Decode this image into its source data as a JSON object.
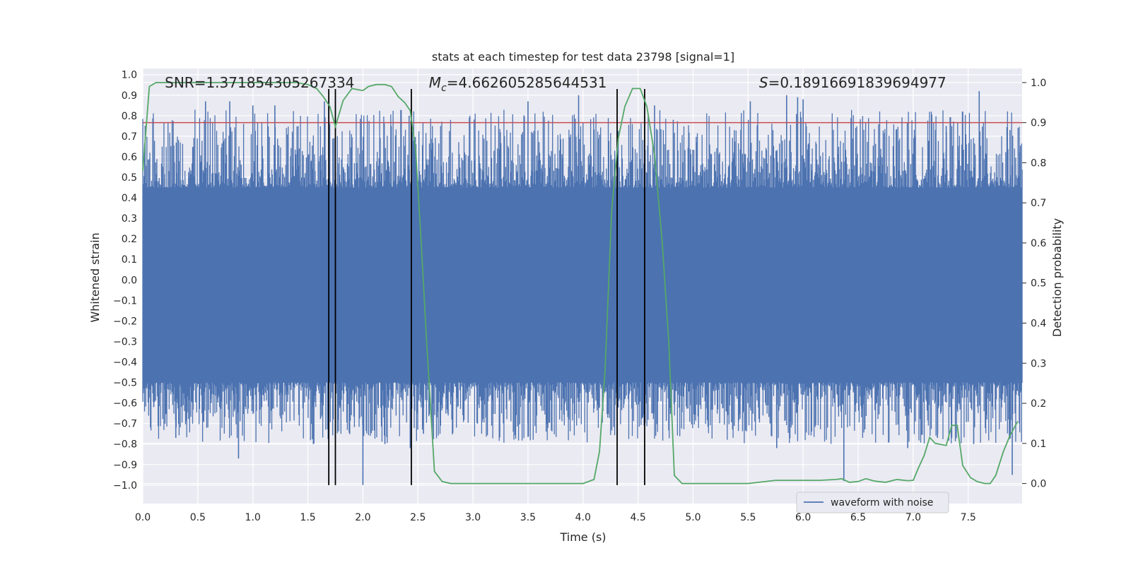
{
  "colors": {
    "background": "#eaeaf2",
    "grid": "#ffffff",
    "waveform": "#4c72b0",
    "probability": "#55a868",
    "threshold": "#c44e52",
    "markers": "#000000",
    "text": "#262626"
  },
  "chart_data": {
    "type": "line",
    "title": "stats at each timestep for test data 23798 [signal=1]",
    "xlabel": "Time (s)",
    "ylabel_left": "Whitened strain",
    "ylabel_right": "Detection probability",
    "xlim": [
      0.0,
      7.99
    ],
    "ylim_left": [
      -1.09,
      1.03
    ],
    "ylim_right": [
      -0.05,
      1.035
    ],
    "x_ticks": [
      0.0,
      0.5,
      1.0,
      1.5,
      2.0,
      2.5,
      3.0,
      3.5,
      4.0,
      4.5,
      5.0,
      5.5,
      6.0,
      6.5,
      7.0,
      7.5
    ],
    "x_tick_labels": [
      "0.0",
      "0.5",
      "1.0",
      "1.5",
      "2.0",
      "2.5",
      "3.0",
      "3.5",
      "4.0",
      "4.5",
      "5.0",
      "5.5",
      "6.0",
      "6.5",
      "7.0",
      "7.5"
    ],
    "y_left_ticks": [
      1.0,
      0.9,
      0.8,
      0.7,
      0.6,
      0.5,
      0.4,
      0.3,
      0.2,
      0.1,
      0.0,
      -0.1,
      -0.2,
      -0.3,
      -0.4,
      -0.5,
      -0.6,
      -0.7,
      -0.8,
      -0.9,
      -1.0
    ],
    "y_left_tick_labels": [
      "1.0",
      "0.9",
      "0.8",
      "0.7",
      "0.6",
      "0.5",
      "0.4",
      "0.3",
      "0.2",
      "0.1",
      "0.0",
      "−0.1",
      "−0.2",
      "−0.3",
      "−0.4",
      "−0.5",
      "−0.6",
      "−0.7",
      "−0.8",
      "−0.9",
      "−1.0"
    ],
    "y_right_ticks": [
      1.0,
      0.9,
      0.8,
      0.7,
      0.6,
      0.5,
      0.4,
      0.3,
      0.2,
      0.1,
      0.0
    ],
    "y_right_tick_labels": [
      "1.0",
      "0.9",
      "0.8",
      "0.7",
      "0.6",
      "0.5",
      "0.4",
      "0.3",
      "0.2",
      "0.1",
      "0.0"
    ],
    "annotations": [
      {
        "label": "SNR",
        "value": "=1.371854305267334",
        "x": 0.2
      },
      {
        "label": "M",
        "sub": "c",
        "value": "=4.662605285644531",
        "x": 2.6
      },
      {
        "label": "S",
        "value": "=0.18916691839694977",
        "x": 5.6
      }
    ],
    "threshold": 0.9,
    "vertical_markers": [
      1.69,
      1.75,
      2.44,
      4.31,
      4.56
    ],
    "waveform": {
      "name": "waveform with noise",
      "amplitude_envelope": [
        0.45,
        -0.5
      ],
      "peaks": [
        {
          "x": 0.57,
          "y": 0.87
        },
        {
          "x": 0.79,
          "y": 0.87
        },
        {
          "x": 1.0,
          "y": 0.85
        },
        {
          "x": 1.2,
          "y": 0.85
        },
        {
          "x": 1.65,
          "y": 0.87
        },
        {
          "x": 2.42,
          "y": 0.8
        },
        {
          "x": 3.5,
          "y": 0.87
        },
        {
          "x": 3.96,
          "y": 0.9
        },
        {
          "x": 4.65,
          "y": 0.85
        },
        {
          "x": 4.82,
          "y": 0.78
        },
        {
          "x": 5.52,
          "y": 0.87
        },
        {
          "x": 5.85,
          "y": 0.9
        },
        {
          "x": 5.95,
          "y": 0.89
        },
        {
          "x": 6.0,
          "y": 0.88
        },
        {
          "x": 7.3,
          "y": 0.75
        },
        {
          "x": 7.45,
          "y": 0.82
        },
        {
          "x": 7.6,
          "y": 0.92
        },
        {
          "x": 7.88,
          "y": 0.73
        }
      ],
      "troughs": [
        {
          "x": 0.1,
          "y": -0.62
        },
        {
          "x": 0.3,
          "y": -0.77
        },
        {
          "x": 0.87,
          "y": -0.87
        },
        {
          "x": 1.55,
          "y": -0.8
        },
        {
          "x": 2.0,
          "y": -1.0
        },
        {
          "x": 2.2,
          "y": -0.8
        },
        {
          "x": 2.43,
          "y": -0.82
        },
        {
          "x": 2.55,
          "y": -0.75
        },
        {
          "x": 3.5,
          "y": -0.7
        },
        {
          "x": 5.7,
          "y": -0.7
        },
        {
          "x": 5.76,
          "y": -0.82
        },
        {
          "x": 6.37,
          "y": -0.98
        },
        {
          "x": 6.95,
          "y": -0.82
        },
        {
          "x": 7.22,
          "y": -0.77
        },
        {
          "x": 7.55,
          "y": -0.8
        },
        {
          "x": 7.9,
          "y": -0.95
        }
      ]
    },
    "detection_probability": {
      "x": [
        0.0,
        0.06,
        0.12,
        0.2,
        0.4,
        0.8,
        1.2,
        1.4,
        1.5,
        1.58,
        1.64,
        1.7,
        1.75,
        1.82,
        1.9,
        2.0,
        2.05,
        2.12,
        2.2,
        2.26,
        2.32,
        2.38,
        2.43,
        2.48,
        2.53,
        2.58,
        2.65,
        2.72,
        2.8,
        2.9,
        3.2,
        3.5,
        3.7,
        4.0,
        4.1,
        4.15,
        4.2,
        4.26,
        4.32,
        4.38,
        4.45,
        4.52,
        4.58,
        4.65,
        4.72,
        4.78,
        4.83,
        4.9,
        5.0,
        5.5,
        5.75,
        5.95,
        6.15,
        6.3,
        6.35,
        6.42,
        6.5,
        6.57,
        6.65,
        6.75,
        6.85,
        6.95,
        7.0,
        7.05,
        7.1,
        7.15,
        7.2,
        7.3,
        7.35,
        7.4,
        7.45,
        7.52,
        7.58,
        7.65,
        7.7,
        7.75,
        7.82,
        7.88,
        7.95
      ],
      "y": [
        0.78,
        0.99,
        1.0,
        1.0,
        1.0,
        1.0,
        1.0,
        1.0,
        0.995,
        0.985,
        0.965,
        0.94,
        0.89,
        0.955,
        0.985,
        0.98,
        0.99,
        0.995,
        0.995,
        0.99,
        0.965,
        0.95,
        0.93,
        0.83,
        0.6,
        0.35,
        0.03,
        0.005,
        0.0,
        0.0,
        0.0,
        0.0,
        0.0,
        0.0,
        0.01,
        0.08,
        0.28,
        0.68,
        0.86,
        0.94,
        0.985,
        0.985,
        0.94,
        0.82,
        0.6,
        0.35,
        0.02,
        0.0,
        0.0,
        0.0,
        0.008,
        0.008,
        0.008,
        0.01,
        0.012,
        0.003,
        0.005,
        0.012,
        0.006,
        0.003,
        0.01,
        0.007,
        0.008,
        0.04,
        0.07,
        0.115,
        0.1,
        0.095,
        0.145,
        0.145,
        0.045,
        0.015,
        0.005,
        0.0,
        0.0,
        0.02,
        0.08,
        0.12,
        0.155
      ]
    },
    "legend": {
      "entries": [
        "waveform with noise"
      ],
      "position": "lower-right"
    }
  }
}
